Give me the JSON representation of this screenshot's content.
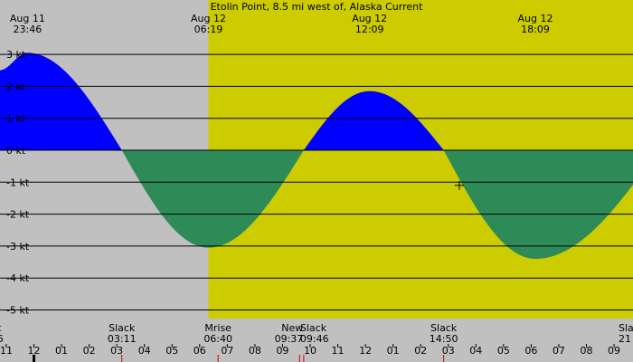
{
  "chart_data": {
    "type": "area",
    "title": "Etolin Point, 8.5 mi west of, Alaska Current",
    "unit": "kt",
    "ylim": [
      -5.7,
      3.2
    ],
    "yticks": [
      {
        "value": 3,
        "label": "3 kt"
      },
      {
        "value": 2,
        "label": "2 kt"
      },
      {
        "value": 1,
        "label": "1 kt"
      },
      {
        "value": 0,
        "label": "0 kt"
      },
      {
        "value": -1,
        "label": "-1 kt"
      },
      {
        "value": -2,
        "label": "-2 kt"
      },
      {
        "value": -3,
        "label": "-3 kt"
      },
      {
        "value": -4,
        "label": "-4 kt"
      },
      {
        "value": -5,
        "label": "-5 kt"
      }
    ],
    "xlim_hours": [
      -1.25,
      22.6
    ],
    "top_labels": [
      {
        "hour": -0.233,
        "date": "Aug 11",
        "time": "23:46"
      },
      {
        "hour": 6.317,
        "date": "Aug 12",
        "time": "06:19"
      },
      {
        "hour": 12.15,
        "date": "Aug 12",
        "time": "12:09"
      },
      {
        "hour": 18.15,
        "date": "Aug 12",
        "time": "18:09"
      }
    ],
    "bottom_events": [
      {
        "hour": -1.1,
        "name": "t",
        "time": "5"
      },
      {
        "hour": 3.183,
        "name": "Slack",
        "time": "03:11"
      },
      {
        "hour": 6.667,
        "name": "Mrise",
        "time": "06:40"
      },
      {
        "hour": 9.617,
        "name": "New",
        "time": "09:37"
      },
      {
        "hour": 9.767,
        "name": "Slack",
        "time": "09:46"
      },
      {
        "hour": 14.833,
        "name": "Slack",
        "time": "14:50"
      },
      {
        "hour": 22.4,
        "name": "Sla",
        "time": "21"
      }
    ],
    "hour_ticks": [
      {
        "hour": -1,
        "label": "11"
      },
      {
        "hour": 0,
        "label": "12"
      },
      {
        "hour": 1,
        "label": "01"
      },
      {
        "hour": 2,
        "label": "02"
      },
      {
        "hour": 3,
        "label": "03"
      },
      {
        "hour": 4,
        "label": "04"
      },
      {
        "hour": 5,
        "label": "05"
      },
      {
        "hour": 6,
        "label": "06"
      },
      {
        "hour": 7,
        "label": "07"
      },
      {
        "hour": 8,
        "label": "08"
      },
      {
        "hour": 9,
        "label": "09"
      },
      {
        "hour": 10,
        "label": "10"
      },
      {
        "hour": 11,
        "label": "11"
      },
      {
        "hour": 12,
        "label": "12"
      },
      {
        "hour": 13,
        "label": "01"
      },
      {
        "hour": 14,
        "label": "02"
      },
      {
        "hour": 15,
        "label": "03"
      },
      {
        "hour": 16,
        "label": "04"
      },
      {
        "hour": 17,
        "label": "05"
      },
      {
        "hour": 18,
        "label": "06"
      },
      {
        "hour": 19,
        "label": "07"
      },
      {
        "hour": 20,
        "label": "08"
      },
      {
        "hour": 21,
        "label": "09"
      }
    ],
    "daylight_start_hour": 6.317,
    "current_curve": [
      {
        "hour": -1.25,
        "value": 2.5
      },
      {
        "hour": -0.233,
        "value": 3.05
      },
      {
        "hour": 3.183,
        "value": 0
      },
      {
        "hour": 6.317,
        "value": -3.05
      },
      {
        "hour": 9.767,
        "value": 0
      },
      {
        "hour": 12.15,
        "value": 1.85
      },
      {
        "hour": 14.833,
        "value": 0
      },
      {
        "hour": 18.15,
        "value": -3.4
      },
      {
        "hour": 22.6,
        "value": 0
      }
    ],
    "cursor_mark": {
      "hour": 15.4,
      "value": -1.1
    },
    "colors": {
      "flood": "#0000ff",
      "ebb": "#2e8b57",
      "night": "#c0c0c0",
      "day": "#cccc00",
      "gridline": "#000000",
      "event_marker": "#cc0000"
    }
  }
}
